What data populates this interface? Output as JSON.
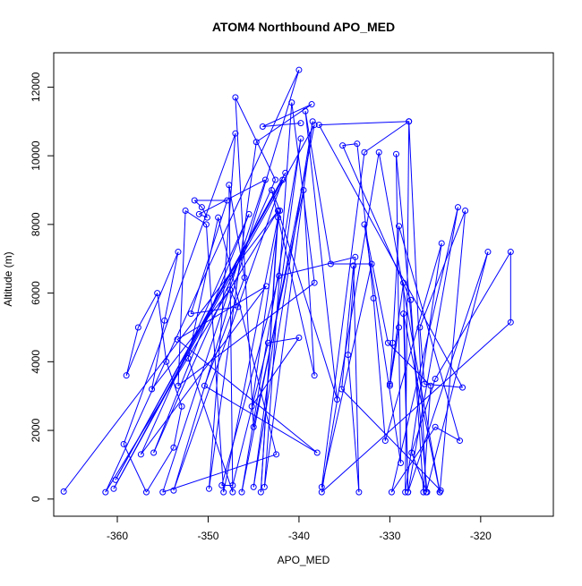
{
  "chart_data": {
    "type": "scatter",
    "title": "ATOM4 Northbound APO_MED",
    "xlabel": "APO_MED",
    "ylabel": "Altitude (m)",
    "xlim": [
      -367,
      -312
    ],
    "ylim": [
      -500,
      13000
    ],
    "x_ticks": [
      -360,
      -350,
      -340,
      -330,
      -320
    ],
    "x_tick_labels": [
      "-360",
      "-350",
      "-340",
      "-330",
      "-320"
    ],
    "y_ticks": [
      0,
      2000,
      4000,
      6000,
      8000,
      10000,
      12000
    ],
    "y_tick_labels": [
      "0",
      "2000",
      "4000",
      "6000",
      "8000",
      "10000",
      "12000"
    ],
    "series": [
      {
        "color": "#0000ff",
        "marker": "open-circle",
        "connected": true,
        "points": [
          [
            -365.9,
            220
          ],
          [
            -342.3,
            8400
          ],
          [
            -361.3,
            200
          ],
          [
            -340.0,
            12500
          ],
          [
            -353.8,
            250
          ],
          [
            -341.8,
            9300
          ],
          [
            -360.2,
            560
          ],
          [
            -341.5,
            9500
          ],
          [
            -360.4,
            300
          ],
          [
            -338.3,
            10900
          ],
          [
            -346.3,
            200
          ],
          [
            -339.8,
            10500
          ],
          [
            -345.0,
            350
          ],
          [
            -338.5,
            11000
          ],
          [
            -343.8,
            350
          ],
          [
            -340.8,
            11550
          ],
          [
            -338.3,
            6300
          ],
          [
            -353.3,
            3300
          ],
          [
            -352.5,
            8400
          ],
          [
            -350.2,
            8000
          ],
          [
            -348.3,
            200
          ],
          [
            -342.3,
            8200
          ],
          [
            -344.2,
            200
          ],
          [
            -342.3,
            8400
          ],
          [
            -335.8,
            2900
          ],
          [
            -339.3,
            11300
          ],
          [
            -336.5,
            6850
          ],
          [
            -332.0,
            6850
          ],
          [
            -337.5,
            350
          ],
          [
            -332.8,
            10100
          ],
          [
            -327.9,
            11000
          ],
          [
            -328.3,
            200
          ],
          [
            -324.3,
            7450
          ],
          [
            -330.5,
            1700
          ],
          [
            -331.8,
            5850
          ],
          [
            -333.6,
            10350
          ],
          [
            -335.2,
            10300
          ],
          [
            -327.7,
            5800
          ],
          [
            -326.3,
            200
          ],
          [
            -325.5,
            3300
          ],
          [
            -330.2,
            4550
          ],
          [
            -332.8,
            8000
          ],
          [
            -328.8,
            1050
          ],
          [
            -329.3,
            10050
          ],
          [
            -325.9,
            200
          ],
          [
            -327.6,
            1350
          ],
          [
            -325.0,
            3500
          ],
          [
            -316.7,
            7200
          ],
          [
            -316.7,
            5150
          ],
          [
            -337.5,
            200
          ],
          [
            -331.2,
            10100
          ],
          [
            -324.5,
            200
          ],
          [
            -321.7,
            8400
          ],
          [
            -326.7,
            5000
          ],
          [
            -326.2,
            3350
          ],
          [
            -322.0,
            3250
          ],
          [
            -337.8,
            10900
          ],
          [
            -327.9,
            11000
          ],
          [
            -326.0,
            200
          ],
          [
            -319.2,
            7200
          ],
          [
            -328.0,
            200
          ],
          [
            -322.5,
            8500
          ],
          [
            -329.8,
            200
          ],
          [
            -325.0,
            2100
          ],
          [
            -322.3,
            1700
          ],
          [
            -329.0,
            7950
          ],
          [
            -329.7,
            4550
          ],
          [
            -330.0,
            3300
          ],
          [
            -329.0,
            5000
          ],
          [
            -330.0,
            3350
          ],
          [
            -328.5,
            6300
          ],
          [
            -328.0,
            200
          ],
          [
            -328.5,
            5400
          ],
          [
            -324.5,
            200
          ],
          [
            -324.4,
            250
          ],
          [
            -335.3,
            3200
          ],
          [
            -334.0,
            6800
          ],
          [
            -333.4,
            200
          ],
          [
            -334.6,
            4200
          ],
          [
            -333.8,
            7050
          ],
          [
            -342.2,
            6500
          ],
          [
            -348.5,
            400
          ],
          [
            -347.3,
            400
          ],
          [
            -343.4,
            4550
          ],
          [
            -340.0,
            4700
          ],
          [
            -345.2,
            2700
          ],
          [
            -342.1,
            8400
          ],
          [
            -343.0,
            9000
          ],
          [
            -338.3,
            3600
          ],
          [
            -339.5,
            9000
          ],
          [
            -345.0,
            2100
          ],
          [
            -347.0,
            11700
          ],
          [
            -342.6,
            9300
          ],
          [
            -356.0,
            1350
          ],
          [
            -345.5,
            8300
          ],
          [
            -357.4,
            1300
          ],
          [
            -343.6,
            6200
          ],
          [
            -353.4,
            4650
          ],
          [
            -338.0,
            1350
          ],
          [
            -350.4,
            3300
          ],
          [
            -346.0,
            6450
          ],
          [
            -347.7,
            9150
          ],
          [
            -347.3,
            200
          ],
          [
            -352.2,
            4100
          ],
          [
            -348.9,
            8200
          ],
          [
            -342.5,
            1300
          ],
          [
            -355.0,
            200
          ],
          [
            -343.7,
            9300
          ],
          [
            -351.0,
            8300
          ],
          [
            -350.1,
            8200
          ],
          [
            -350.7,
            8500
          ],
          [
            -351.5,
            8700
          ],
          [
            -347.9,
            8700
          ],
          [
            -351.9,
            5400
          ],
          [
            -346.7,
            5600
          ],
          [
            -347.6,
            6100
          ],
          [
            -356.2,
            3200
          ],
          [
            -354.8,
            5200
          ],
          [
            -353.3,
            7200
          ],
          [
            -359.0,
            3600
          ],
          [
            -357.7,
            5000
          ],
          [
            -355.6,
            6000
          ],
          [
            -354.6,
            4000
          ],
          [
            -352.9,
            2700
          ],
          [
            -353.8,
            1500
          ],
          [
            -356.8,
            200
          ],
          [
            -359.3,
            1600
          ],
          [
            -347.0,
            10650
          ],
          [
            -349.9,
            300
          ],
          [
            -344.7,
            10400
          ],
          [
            -338.6,
            11500
          ],
          [
            -344.0,
            10850
          ],
          [
            -339.8,
            10950
          ]
        ]
      }
    ]
  }
}
